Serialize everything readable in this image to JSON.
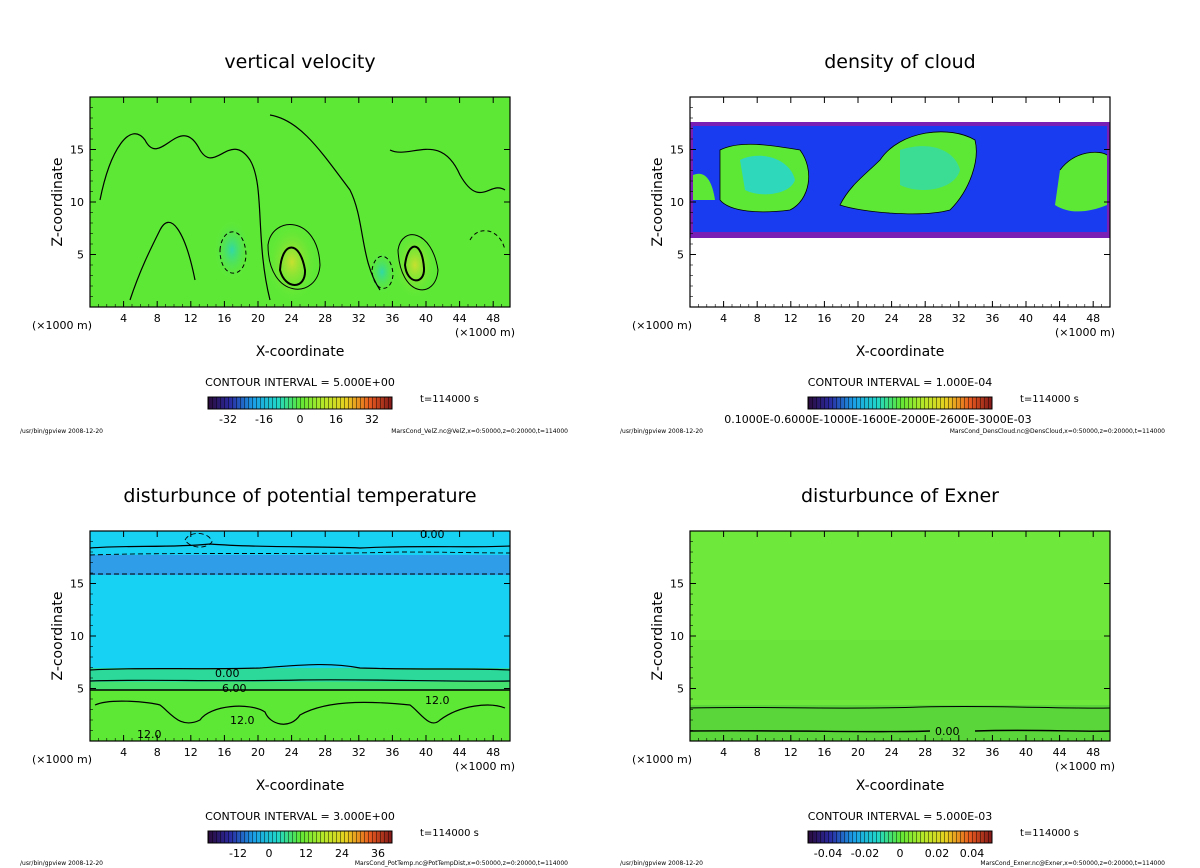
{
  "chart_data": [
    {
      "type": "heatmap",
      "title": "vertical velocity",
      "xlabel": "X-coordinate",
      "ylabel": "Z-coordinate",
      "x_unit": "(×1000 m)",
      "xlim": [
        0,
        50
      ],
      "ylim": [
        0,
        20
      ],
      "x_ticks": [
        4,
        8,
        12,
        16,
        20,
        24,
        28,
        32,
        36,
        40,
        44,
        48
      ],
      "y_ticks": [
        5,
        10,
        15
      ],
      "contour_interval": "CONTOUR INTERVAL = 5.000E+00",
      "time": "t=114000 s",
      "colorbar_ticks": [
        "-32",
        "-16",
        "0",
        "16",
        "32"
      ],
      "colorbar_range": [
        -40,
        40
      ],
      "footer_left": "/usr/bin/gpview 2008-12-20",
      "footer_right": "MarsCond_VelZ.nc@VelZ,x=0:50000,z=0:20000,t=114000"
    },
    {
      "type": "heatmap",
      "title": "density of cloud",
      "xlabel": "X-coordinate",
      "ylabel": "Z-coordinate",
      "x_unit": "(×1000 m)",
      "xlim": [
        0,
        50
      ],
      "ylim": [
        0,
        20
      ],
      "x_ticks": [
        4,
        8,
        12,
        16,
        20,
        24,
        28,
        32,
        36,
        40,
        44,
        48
      ],
      "y_ticks": [
        5,
        10,
        15
      ],
      "contour_interval": "CONTOUR INTERVAL = 1.000E-04",
      "time": "t=114000 s",
      "colorbar_ticks": [
        "0.1000E-0.6000E-1000E-1600E-2000E-2600E-3000E-03"
      ],
      "colorbar_range": [
        0,
        0.0003
      ],
      "footer_left": "/usr/bin/gpview 2008-12-20",
      "footer_right": "MarsCond_DensCloud.nc@DensCloud,x=0:50000,z=0:20000,t=114000"
    },
    {
      "type": "heatmap",
      "title": "disturbunce of potential temperature",
      "xlabel": "X-coordinate",
      "ylabel": "Z-coordinate",
      "x_unit": "(×1000 m)",
      "xlim": [
        0,
        50
      ],
      "ylim": [
        0,
        20
      ],
      "x_ticks": [
        4,
        8,
        12,
        16,
        20,
        24,
        28,
        32,
        36,
        40,
        44,
        48
      ],
      "y_ticks": [
        5,
        10,
        15
      ],
      "contour_interval": "CONTOUR INTERVAL = 3.000E+00",
      "time": "t=114000 s",
      "colorbar_ticks": [
        "-12",
        "0",
        "12",
        "24",
        "36"
      ],
      "colorbar_range": [
        -18,
        42
      ],
      "contour_labels": [
        "0.00",
        "0.00",
        "6.00",
        "12.0",
        "12.0",
        "12.0"
      ],
      "footer_left": "/usr/bin/gpview 2008-12-20",
      "footer_right": "MarsCond_PotTemp.nc@PotTempDist,x=0:50000,z=0:20000,t=114000"
    },
    {
      "type": "heatmap",
      "title": "disturbunce of Exner",
      "xlabel": "X-coordinate",
      "ylabel": "Z-coordinate",
      "x_unit": "(×1000 m)",
      "xlim": [
        0,
        50
      ],
      "ylim": [
        0,
        20
      ],
      "x_ticks": [
        4,
        8,
        12,
        16,
        20,
        24,
        28,
        32,
        36,
        40,
        44,
        48
      ],
      "y_ticks": [
        5,
        10,
        15
      ],
      "contour_interval": "CONTOUR INTERVAL = 5.000E-03",
      "time": "t=114000 s",
      "colorbar_ticks": [
        "-0.04",
        "-0.02",
        "0",
        "0.02",
        "0.04"
      ],
      "colorbar_range": [
        -0.05,
        0.05
      ],
      "contour_labels": [
        "0.00"
      ],
      "footer_left": "/usr/bin/gpview 2008-12-20",
      "footer_right": "MarsCond_Exner.nc@Exner,x=0:50000,z=0:20000,t=114000"
    }
  ],
  "colors": {
    "green": "#5ee836",
    "cyan": "#18d2f4",
    "blue": "#1a3cf0",
    "purple": "#7a1fb5"
  }
}
